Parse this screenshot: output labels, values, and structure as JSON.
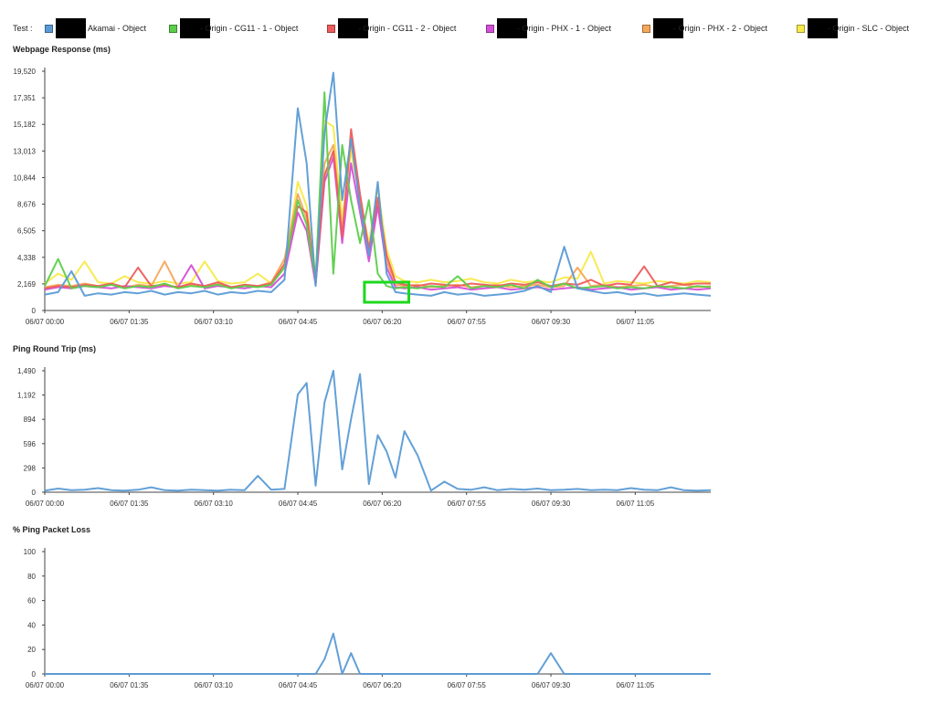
{
  "legend": {
    "prefix": "Test :",
    "items": [
      {
        "label": "Akamai - Object",
        "color": "#5b9bd5"
      },
      {
        "label": "- Origin - CG11 - 1 - Object",
        "color": "#5ccd4a"
      },
      {
        "label": "- Origin - CG11 - 2 - Object",
        "color": "#ee5c5c"
      },
      {
        "label": "- Origin - PHX - 1 - Object",
        "color": "#d450d8"
      },
      {
        "label": "- Origin - PHX - 2 - Object",
        "color": "#f5a85a"
      },
      {
        "label": "- Origin - SLC - Object",
        "color": "#f7ea4a"
      }
    ]
  },
  "highlight_color": "#1ed81e",
  "chart_data": [
    {
      "type": "line",
      "title": "Webpage Response (ms)",
      "x_ticks": [
        "06/07 00:00",
        "06/07 01:35",
        "06/07 03:10",
        "06/07 04:45",
        "06/07 06:20",
        "06/07 07:55",
        "06/07 09:30",
        "06/07 11:05"
      ],
      "y_ticks": [
        "0",
        "2,169",
        "4,338",
        "6,505",
        "8,676",
        "10,844",
        "13,013",
        "15,182",
        "17,351",
        "19,520"
      ],
      "ylim": [
        0,
        19520
      ],
      "xlim": [
        "06/07 00:00",
        "06/07 12:30"
      ],
      "x": [
        "06/07 00:00",
        "06/07 00:15",
        "06/07 00:30",
        "06/07 00:45",
        "06/07 01:00",
        "06/07 01:15",
        "06/07 01:30",
        "06/07 01:45",
        "06/07 02:00",
        "06/07 02:15",
        "06/07 02:30",
        "06/07 02:45",
        "06/07 03:00",
        "06/07 03:15",
        "06/07 03:30",
        "06/07 03:45",
        "06/07 04:00",
        "06/07 04:15",
        "06/07 04:30",
        "06/07 04:45",
        "06/07 04:55",
        "06/07 05:05",
        "06/07 05:15",
        "06/07 05:25",
        "06/07 05:35",
        "06/07 05:45",
        "06/07 05:55",
        "06/07 06:05",
        "06/07 06:15",
        "06/07 06:25",
        "06/07 06:35",
        "06/07 06:45",
        "06/07 07:00",
        "06/07 07:15",
        "06/07 07:30",
        "06/07 07:45",
        "06/07 08:00",
        "06/07 08:15",
        "06/07 08:30",
        "06/07 08:45",
        "06/07 09:00",
        "06/07 09:15",
        "06/07 09:30",
        "06/07 09:45",
        "06/07 10:00",
        "06/07 10:15",
        "06/07 10:30",
        "06/07 10:45",
        "06/07 11:00",
        "06/07 11:15",
        "06/07 11:30",
        "06/07 11:45",
        "06/07 12:00",
        "06/07 12:15",
        "06/07 12:30"
      ],
      "series": [
        {
          "name": "Akamai - Object",
          "color": "#5b9bd5",
          "values": [
            1300,
            1500,
            3200,
            1200,
            1400,
            1300,
            1500,
            1400,
            1600,
            1300,
            1500,
            1400,
            1600,
            1300,
            1500,
            1400,
            1600,
            1500,
            2500,
            16500,
            12000,
            2000,
            14500,
            19400,
            9000,
            14000,
            8500,
            4500,
            10500,
            3000,
            1500,
            1400,
            1300,
            1200,
            1500,
            1300,
            1400,
            1200,
            1300,
            1400,
            1600,
            2000,
            1500,
            5200,
            1800,
            1600,
            1400,
            1500,
            1300,
            1400,
            1200,
            1300,
            1400,
            1300,
            1200
          ]
        },
        {
          "name": "- Origin - CG11 - 1 - Object",
          "color": "#5ccd4a",
          "values": [
            2000,
            4200,
            1800,
            2000,
            1900,
            2100,
            1800,
            2000,
            1900,
            2200,
            1800,
            2000,
            1900,
            2100,
            1800,
            2000,
            1900,
            2100,
            3500,
            9000,
            7000,
            2500,
            17800,
            3000,
            13500,
            9000,
            5500,
            9000,
            3000,
            2000,
            1800,
            1900,
            1800,
            2000,
            1900,
            2800,
            1800,
            2000,
            1900,
            2100,
            1800,
            2500,
            1900,
            2200,
            1800,
            1900,
            2000,
            1800,
            1900,
            1800,
            2000,
            1900,
            1800,
            2000,
            1900
          ]
        },
        {
          "name": "- Origin - CG11 - 2 - Object",
          "color": "#ee5c5c",
          "values": [
            1800,
            2000,
            1900,
            2100,
            2000,
            2200,
            1900,
            3500,
            2000,
            2100,
            1900,
            2200,
            2000,
            2300,
            1900,
            2100,
            2000,
            2200,
            3800,
            8500,
            8000,
            2200,
            11000,
            13000,
            6000,
            14800,
            9500,
            5000,
            9200,
            4500,
            2300,
            2100,
            2000,
            2200,
            2100,
            2000,
            2200,
            2100,
            2000,
            2200,
            2100,
            2300,
            2000,
            2200,
            2100,
            2500,
            2000,
            2200,
            2100,
            3600,
            2000,
            2300,
            2100,
            2200,
            2200
          ]
        },
        {
          "name": "- Origin - PHX - 1 - Object",
          "color": "#d450d8",
          "values": [
            1700,
            1900,
            1800,
            2000,
            1900,
            1800,
            2000,
            1900,
            1800,
            2000,
            1900,
            3700,
            1800,
            2000,
            1900,
            1800,
            2000,
            1900,
            3000,
            8000,
            6500,
            2100,
            10500,
            12500,
            5500,
            12000,
            8000,
            4000,
            8500,
            3500,
            1900,
            1800,
            1900,
            1700,
            1800,
            1900,
            1700,
            1800,
            1900,
            1700,
            1800,
            1900,
            1700,
            1800,
            1900,
            1700,
            1800,
            1900,
            1700,
            1800,
            1900,
            1700,
            1800,
            1700,
            1800
          ]
        },
        {
          "name": "- Origin - PHX - 2 - Object",
          "color": "#f5a85a",
          "values": [
            1900,
            2100,
            2000,
            2200,
            2000,
            2100,
            1900,
            2100,
            2000,
            4000,
            1900,
            2100,
            2000,
            2200,
            1900,
            2100,
            2000,
            2300,
            4200,
            9500,
            7500,
            2400,
            12000,
            13500,
            6500,
            13800,
            8800,
            4800,
            8800,
            4000,
            2100,
            2000,
            2100,
            1900,
            2000,
            2100,
            1900,
            2000,
            2100,
            1900,
            2000,
            2100,
            1900,
            2000,
            3500,
            2000,
            2100,
            1900,
            2000,
            2100,
            1900,
            2000,
            2100,
            1900,
            2000
          ]
        },
        {
          "name": "- Origin - SLC - Object",
          "color": "#f7ea4a",
          "values": [
            2200,
            3000,
            2500,
            4000,
            2300,
            2200,
            2800,
            2300,
            2200,
            2400,
            2200,
            2300,
            4000,
            2400,
            2200,
            2300,
            3000,
            2200,
            3500,
            10500,
            8500,
            2800,
            15500,
            15000,
            7500,
            13000,
            9000,
            5500,
            10000,
            5000,
            2800,
            2400,
            2300,
            2500,
            2300,
            2400,
            2600,
            2300,
            2200,
            2500,
            2300,
            2400,
            2300,
            2700,
            2600,
            4800,
            2200,
            2400,
            2300,
            2200,
            2400,
            2300,
            2200,
            2400,
            2300
          ]
        }
      ]
    },
    {
      "type": "line",
      "title": "Ping Round Trip (ms)",
      "x_ticks": [
        "06/07 00:00",
        "06/07 01:35",
        "06/07 03:10",
        "06/07 04:45",
        "06/07 06:20",
        "06/07 07:55",
        "06/07 09:30",
        "06/07 11:05"
      ],
      "y_ticks": [
        "0",
        "298",
        "596",
        "894",
        "1,192",
        "1,490"
      ],
      "ylim": [
        0,
        1490
      ],
      "xlim": [
        "06/07 00:00",
        "06/07 12:30"
      ],
      "x": [
        "06/07 00:00",
        "06/07 00:15",
        "06/07 00:30",
        "06/07 00:45",
        "06/07 01:00",
        "06/07 01:15",
        "06/07 01:30",
        "06/07 01:45",
        "06/07 02:00",
        "06/07 02:15",
        "06/07 02:30",
        "06/07 02:45",
        "06/07 03:00",
        "06/07 03:15",
        "06/07 03:30",
        "06/07 03:45",
        "06/07 04:00",
        "06/07 04:15",
        "06/07 04:30",
        "06/07 04:45",
        "06/07 04:55",
        "06/07 05:05",
        "06/07 05:15",
        "06/07 05:25",
        "06/07 05:35",
        "06/07 05:45",
        "06/07 05:55",
        "06/07 06:05",
        "06/07 06:15",
        "06/07 06:25",
        "06/07 06:35",
        "06/07 06:45",
        "06/07 07:00",
        "06/07 07:15",
        "06/07 07:30",
        "06/07 07:45",
        "06/07 08:00",
        "06/07 08:15",
        "06/07 08:30",
        "06/07 08:45",
        "06/07 09:00",
        "06/07 09:15",
        "06/07 09:30",
        "06/07 09:45",
        "06/07 10:00",
        "06/07 10:15",
        "06/07 10:30",
        "06/07 10:45",
        "06/07 11:00",
        "06/07 11:15",
        "06/07 11:30",
        "06/07 11:45",
        "06/07 12:00",
        "06/07 12:15",
        "06/07 12:30"
      ],
      "series": [
        {
          "name": "",
          "color": "#5b9bd5",
          "values": [
            20,
            45,
            25,
            30,
            50,
            25,
            20,
            30,
            60,
            25,
            20,
            30,
            25,
            20,
            30,
            25,
            200,
            30,
            40,
            1200,
            1340,
            80,
            1100,
            1490,
            280,
            900,
            1450,
            100,
            700,
            500,
            180,
            750,
            450,
            20,
            130,
            40,
            30,
            60,
            25,
            40,
            30,
            45,
            25,
            30,
            40,
            25,
            30,
            25,
            50,
            30,
            25,
            60,
            25,
            20,
            25
          ]
        }
      ]
    },
    {
      "type": "line",
      "title": "% Ping Packet Loss",
      "x_ticks": [
        "06/07 00:00",
        "06/07 01:35",
        "06/07 03:10",
        "06/07 04:45",
        "06/07 06:20",
        "06/07 07:55",
        "06/07 09:30",
        "06/07 11:05"
      ],
      "y_ticks": [
        "0",
        "20",
        "40",
        "60",
        "80",
        "100"
      ],
      "ylim": [
        0,
        100
      ],
      "xlim": [
        "06/07 00:00",
        "06/07 12:30"
      ],
      "x": [
        "06/07 00:00",
        "06/07 05:05",
        "06/07 05:15",
        "06/07 05:25",
        "06/07 05:35",
        "06/07 05:45",
        "06/07 05:55",
        "06/07 09:15",
        "06/07 09:30",
        "06/07 09:45",
        "06/07 12:30"
      ],
      "series": [
        {
          "name": "",
          "color": "#5b9bd5",
          "values": [
            0,
            0,
            12,
            33,
            0,
            17,
            0,
            0,
            17,
            0,
            0
          ]
        }
      ]
    }
  ]
}
